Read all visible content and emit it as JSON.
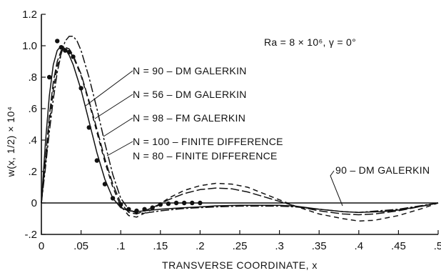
{
  "chart_data": {
    "type": "line",
    "title": "",
    "xlabel": "TRANSVERSE COORDINATE, x",
    "ylabel": "w(x, 1/2) × 10⁴",
    "xlim": [
      0,
      0.5
    ],
    "ylim": [
      -0.2,
      1.2
    ],
    "x_ticks": [
      {
        "v": 0,
        "label": "0"
      },
      {
        "v": 0.05,
        "label": ".05"
      },
      {
        "v": 0.1,
        "label": ".1"
      },
      {
        "v": 0.15,
        "label": ".15"
      },
      {
        "v": 0.2,
        "label": ".2"
      },
      {
        "v": 0.25,
        "label": ".25"
      },
      {
        "v": 0.3,
        "label": ".3"
      },
      {
        "v": 0.35,
        "label": ".35"
      },
      {
        "v": 0.4,
        "label": ".4"
      },
      {
        "v": 0.45,
        "label": ".45"
      },
      {
        "v": 0.5,
        "label": ".5"
      }
    ],
    "y_ticks": [
      {
        "v": -0.2,
        "label": "-.2"
      },
      {
        "v": 0,
        "label": "0"
      },
      {
        "v": 0.2,
        "label": ".2"
      },
      {
        "v": 0.4,
        "label": ".4"
      },
      {
        "v": 0.6,
        "label": ".6"
      },
      {
        "v": 0.8,
        "label": ".8"
      },
      {
        "v": 1.0,
        "label": "1.0"
      },
      {
        "v": 1.2,
        "label": "1.2"
      }
    ],
    "grid": false,
    "annotation": "Ra = 8 × 10⁶, γ = 0°",
    "series": [
      {
        "name": "N = 90 – DM GALERKIN",
        "style": "solid",
        "x": [
          0,
          0.005,
          0.01,
          0.015,
          0.02,
          0.025,
          0.03,
          0.035,
          0.04,
          0.05,
          0.06,
          0.07,
          0.08,
          0.09,
          0.1,
          0.11,
          0.12,
          0.13,
          0.15,
          0.18,
          0.2,
          0.22,
          0.25,
          0.28,
          0.3,
          0.32,
          0.35,
          0.38,
          0.4,
          0.43,
          0.45,
          0.48,
          0.5
        ],
        "y": [
          0,
          0.38,
          0.68,
          0.88,
          0.97,
          1.0,
          0.98,
          0.94,
          0.88,
          0.72,
          0.52,
          0.32,
          0.15,
          0.03,
          -0.03,
          -0.05,
          -0.055,
          -0.05,
          -0.04,
          -0.03,
          -0.025,
          -0.018,
          -0.015,
          -0.015,
          -0.015,
          -0.02,
          -0.04,
          -0.055,
          -0.06,
          -0.055,
          -0.045,
          -0.02,
          0
        ]
      },
      {
        "name": "N = 56 – DM GALERKIN",
        "style": "longdash",
        "x": [
          0,
          0.005,
          0.01,
          0.015,
          0.02,
          0.025,
          0.03,
          0.035,
          0.04,
          0.05,
          0.06,
          0.07,
          0.08,
          0.09,
          0.1,
          0.11,
          0.12,
          0.14,
          0.16,
          0.18,
          0.2,
          0.22,
          0.24,
          0.26,
          0.28,
          0.3,
          0.32,
          0.35,
          0.38,
          0.4,
          0.42,
          0.45,
          0.48,
          0.5
        ],
        "y": [
          0,
          0.28,
          0.55,
          0.77,
          0.9,
          0.97,
          0.99,
          0.98,
          0.94,
          0.82,
          0.65,
          0.47,
          0.28,
          0.12,
          0.0,
          -0.06,
          -0.07,
          -0.03,
          0.02,
          0.06,
          0.085,
          0.095,
          0.09,
          0.07,
          0.04,
          0.01,
          -0.02,
          -0.05,
          -0.07,
          -0.075,
          -0.07,
          -0.05,
          -0.02,
          0
        ]
      },
      {
        "name": "N = 98 – FM GALERKIN",
        "style": "dashdot",
        "x": [
          0,
          0.005,
          0.01,
          0.015,
          0.02,
          0.025,
          0.03,
          0.035,
          0.04,
          0.045,
          0.05,
          0.06,
          0.07,
          0.08,
          0.09,
          0.1,
          0.11,
          0.12,
          0.13,
          0.15,
          0.18,
          0.2,
          0.22,
          0.25,
          0.28,
          0.3,
          0.32,
          0.35,
          0.38,
          0.4,
          0.45,
          0.5
        ],
        "y": [
          0,
          0.22,
          0.45,
          0.66,
          0.83,
          0.95,
          1.03,
          1.06,
          1.06,
          1.03,
          0.97,
          0.8,
          0.6,
          0.38,
          0.18,
          0.03,
          -0.04,
          -0.065,
          -0.065,
          -0.05,
          -0.035,
          -0.03,
          -0.025,
          -0.02,
          -0.02,
          -0.02,
          -0.025,
          -0.04,
          -0.055,
          -0.06,
          -0.04,
          0
        ]
      },
      {
        "name": "N = 100 – FINITE DIFFERENCE",
        "style": "dashed",
        "x": [
          0,
          0.005,
          0.01,
          0.015,
          0.02,
          0.025,
          0.03,
          0.035,
          0.04,
          0.05,
          0.06,
          0.07,
          0.08,
          0.09,
          0.1,
          0.11,
          0.12,
          0.14,
          0.16,
          0.18,
          0.2,
          0.22,
          0.24,
          0.26,
          0.28,
          0.3,
          0.32,
          0.35,
          0.38,
          0.4,
          0.42,
          0.45,
          0.48,
          0.5
        ],
        "y": [
          0,
          0.25,
          0.5,
          0.72,
          0.87,
          0.95,
          0.98,
          0.97,
          0.93,
          0.81,
          0.64,
          0.45,
          0.26,
          0.1,
          -0.02,
          -0.08,
          -0.09,
          -0.04,
          0.03,
          0.08,
          0.11,
          0.125,
          0.12,
          0.1,
          0.06,
          0.02,
          -0.02,
          -0.07,
          -0.1,
          -0.115,
          -0.11,
          -0.08,
          -0.035,
          0
        ]
      },
      {
        "name": "N = 80 – FINITE DIFFERENCE",
        "style": "dots",
        "x": [
          0.01,
          0.02,
          0.025,
          0.03,
          0.035,
          0.04,
          0.05,
          0.06,
          0.07,
          0.08,
          0.09,
          0.1,
          0.11,
          0.12,
          0.13,
          0.14,
          0.15,
          0.16,
          0.17,
          0.18,
          0.19,
          0.2
        ],
        "y": [
          0.8,
          1.03,
          0.99,
          0.97,
          0.96,
          0.93,
          0.73,
          0.48,
          0.27,
          0.12,
          0.03,
          -0.01,
          -0.04,
          -0.05,
          -0.04,
          -0.03,
          -0.01,
          -0.005,
          0.0,
          0.0,
          0.0,
          0.0
        ]
      }
    ],
    "extra_label": "90 – DM GALERKIN"
  }
}
